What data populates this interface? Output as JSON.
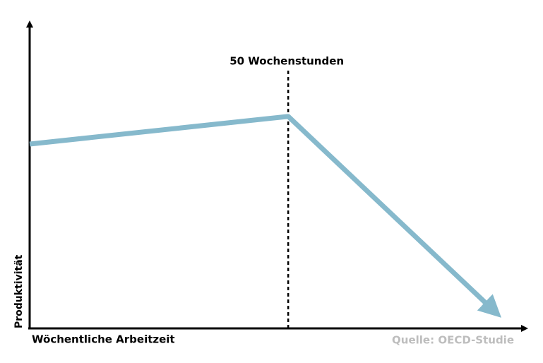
{
  "chart_data": {
    "type": "line",
    "x_label": "Wöchentliche Arbeitzeit",
    "y_label": "Produktivität",
    "source": "Quelle: OECD-Studie",
    "annotation": {
      "label": "50 Wochenstunden",
      "x": 50
    },
    "x": [
      0,
      50,
      89
    ],
    "values": [
      60,
      69,
      7
    ],
    "color": "#86b9cc",
    "xlim": [
      0,
      96
    ],
    "ylim": [
      0,
      100
    ]
  }
}
